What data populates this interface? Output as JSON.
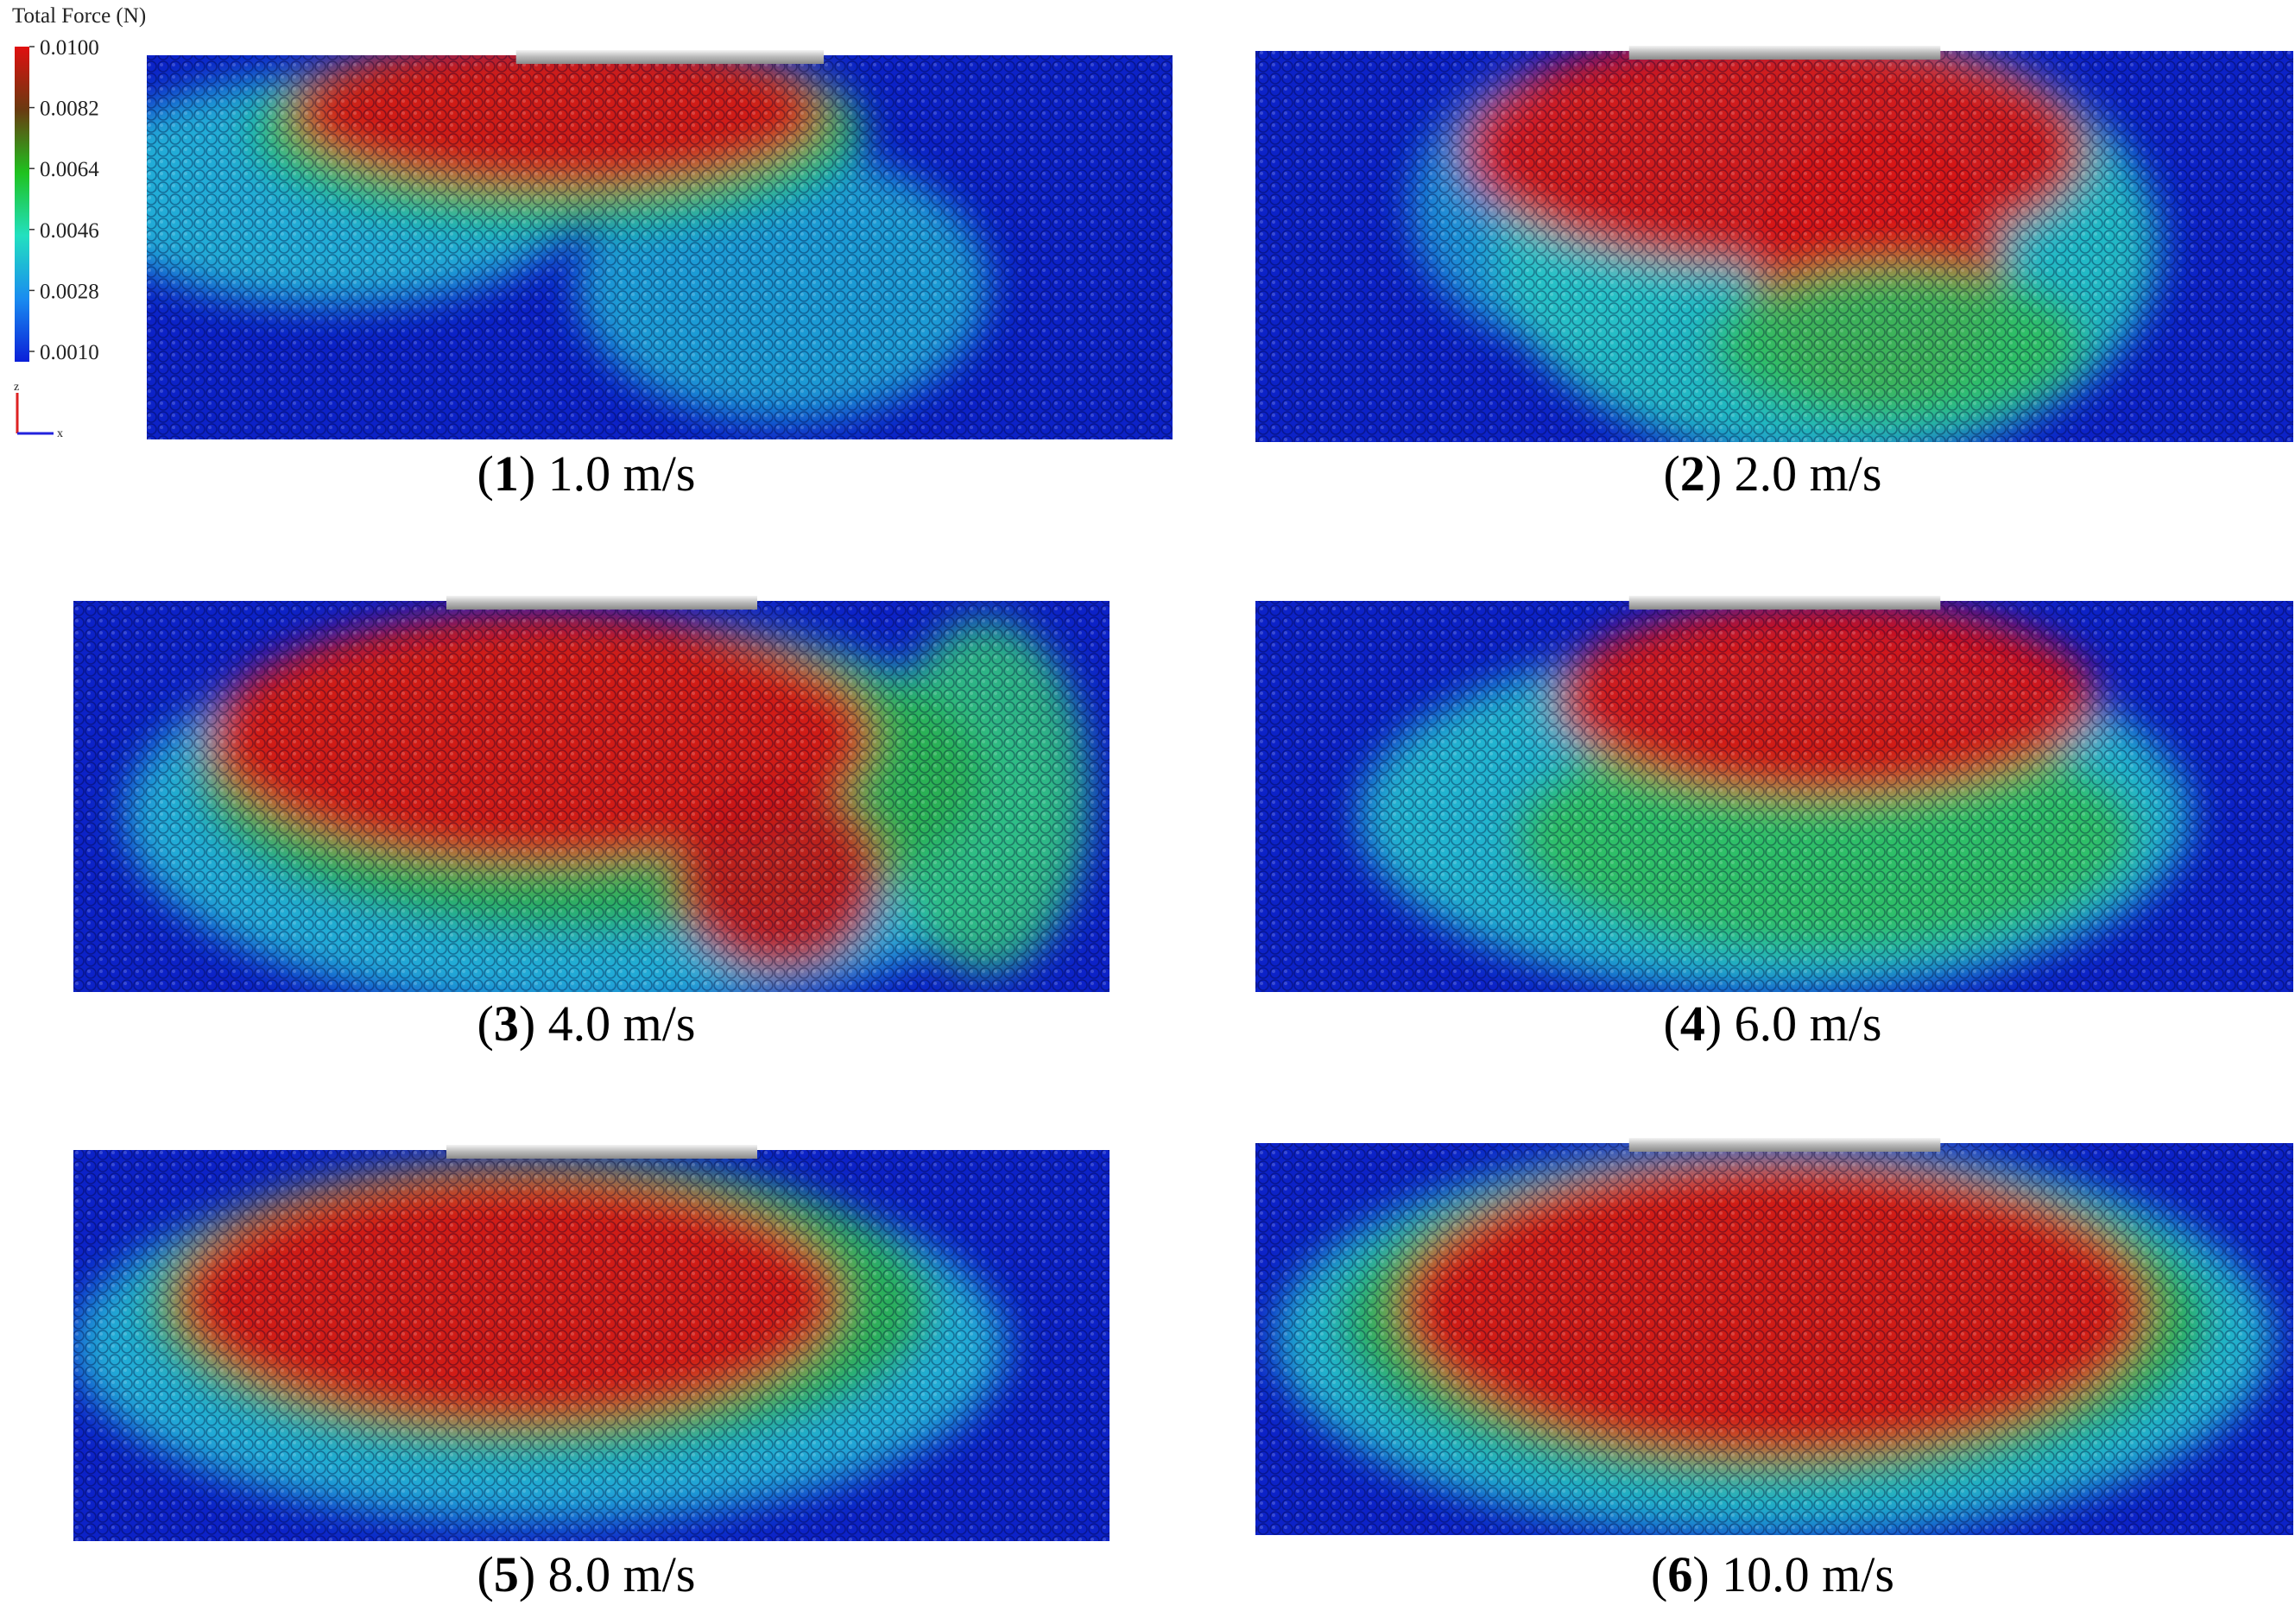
{
  "colorbar": {
    "title": "Total Force (N)",
    "ticks": [
      {
        "value": 0.01,
        "label": "0.0100"
      },
      {
        "value": 0.0082,
        "label": "0.0082"
      },
      {
        "value": 0.0064,
        "label": "0.0064"
      },
      {
        "value": 0.0046,
        "label": "0.0046"
      },
      {
        "value": 0.0028,
        "label": "0.0028"
      },
      {
        "value": 0.001,
        "label": "0.0010"
      }
    ]
  },
  "axes_triad": {
    "z": "z",
    "x": "x"
  },
  "panels": [
    {
      "caption": [
        "(",
        "1",
        ") 1.0 m/s"
      ]
    },
    {
      "caption": [
        "(",
        "2",
        ") 2.0 m/s"
      ]
    },
    {
      "caption": [
        "(",
        "3",
        ") 4.0 m/s"
      ]
    },
    {
      "caption": [
        "(",
        "4",
        ") 6.0 m/s"
      ]
    },
    {
      "caption": [
        "(",
        "5",
        ") 8.0 m/s"
      ]
    },
    {
      "caption": [
        "(",
        "6",
        ") 10.0 m/s"
      ]
    }
  ]
}
